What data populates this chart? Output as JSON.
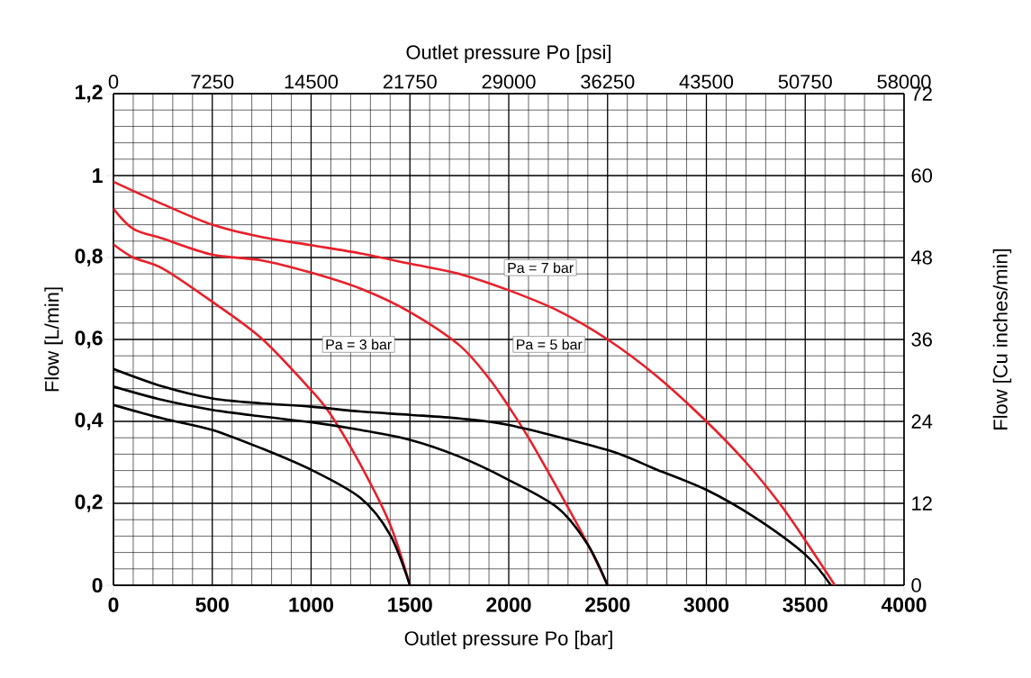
{
  "chart_data": {
    "type": "line",
    "xlabel": "Outlet pressure Po [bar]",
    "x2label": "Outlet pressure Po [psi]",
    "ylabel": "Flow [L/min]",
    "y2label": "Flow [Cu inches/min]",
    "xlim": [
      0,
      4000
    ],
    "xticks": [
      0,
      500,
      1000,
      1500,
      2000,
      2500,
      3000,
      3500,
      4000
    ],
    "x2lim": [
      0,
      58000
    ],
    "x2ticks": [
      0,
      7250,
      14500,
      21750,
      29000,
      36250,
      43500,
      50750,
      58000
    ],
    "ylim": [
      0,
      1.2
    ],
    "yticks": [
      0,
      {
        "value": 0.2,
        "label": "0,2"
      },
      {
        "value": 0.4,
        "label": "0,4"
      },
      {
        "value": 0.6,
        "label": "0,6"
      },
      {
        "value": 0.8,
        "label": "0,8"
      },
      1,
      {
        "value": 1.2,
        "label": "1,2"
      }
    ],
    "y2lim": [
      0,
      72
    ],
    "y2ticks": [
      0,
      12,
      24,
      36,
      48,
      60,
      72
    ],
    "grid": true,
    "series": [
      {
        "color": "#e8202a",
        "x": [
          0,
          100,
          250,
          500,
          750,
          1000,
          1100,
          1250,
          1400,
          1500
        ],
        "values": [
          0.832,
          0.8,
          0.773,
          0.692,
          0.602,
          0.476,
          0.416,
          0.294,
          0.148,
          0
        ]
      },
      {
        "color": "#e8202a",
        "x": [
          0,
          100,
          250,
          500,
          750,
          1000,
          1250,
          1500,
          1750,
          1900,
          2000,
          2100,
          2250,
          2400,
          2500
        ],
        "values": [
          0.919,
          0.87,
          0.846,
          0.807,
          0.793,
          0.763,
          0.724,
          0.667,
          0.586,
          0.505,
          0.436,
          0.36,
          0.233,
          0.1,
          0
        ]
      },
      {
        "color": "#e8202a",
        "x": [
          0,
          250,
          500,
          750,
          1000,
          1250,
          1500,
          1750,
          2000,
          2250,
          2500,
          2750,
          3000,
          3200,
          3370,
          3500,
          3650
        ],
        "values": [
          0.985,
          0.93,
          0.88,
          0.85,
          0.83,
          0.81,
          0.785,
          0.76,
          0.72,
          0.67,
          0.6,
          0.51,
          0.4,
          0.3,
          0.2,
          0.11,
          0
        ]
      },
      {
        "color": "#000000",
        "x": [
          0,
          250,
          500,
          750,
          1000,
          1250,
          1400,
          1500
        ],
        "values": [
          0.44,
          0.407,
          0.379,
          0.334,
          0.282,
          0.213,
          0.123,
          0
        ]
      },
      {
        "color": "#000000",
        "x": [
          0,
          250,
          500,
          750,
          1000,
          1250,
          1500,
          1750,
          2000,
          2250,
          2400,
          2500
        ],
        "values": [
          0.485,
          0.452,
          0.428,
          0.412,
          0.398,
          0.379,
          0.355,
          0.314,
          0.257,
          0.188,
          0.099,
          0
        ]
      },
      {
        "color": "#000000",
        "x": [
          0,
          250,
          500,
          750,
          1000,
          1250,
          1500,
          1750,
          2000,
          2500,
          2750,
          3000,
          3250,
          3500,
          3630
        ],
        "values": [
          0.528,
          0.485,
          0.456,
          0.444,
          0.436,
          0.424,
          0.416,
          0.407,
          0.391,
          0.33,
          0.282,
          0.233,
          0.164,
          0.075,
          0
        ]
      }
    ],
    "annotations": [
      "Pa = 3 bar",
      "Pa = 5 bar",
      "Pa = 7 bar"
    ]
  }
}
